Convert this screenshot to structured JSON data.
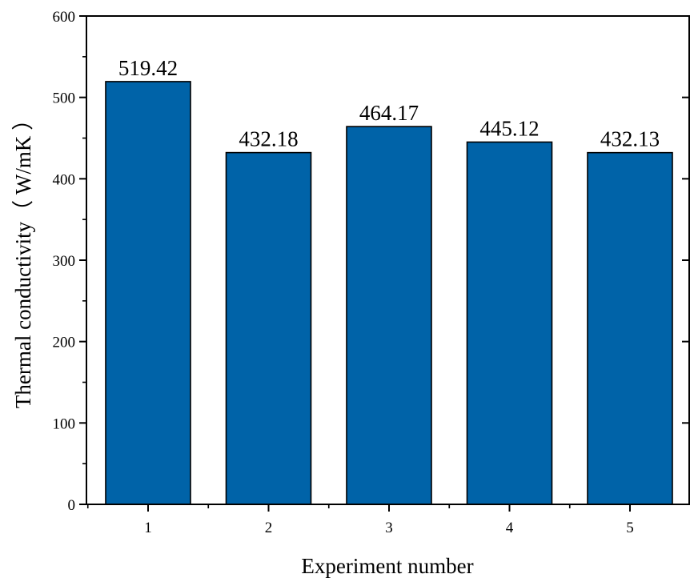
{
  "chart_data": {
    "type": "bar",
    "categories": [
      "1",
      "2",
      "3",
      "4",
      "5"
    ],
    "values": [
      519.42,
      432.18,
      464.17,
      445.12,
      432.13
    ],
    "data_labels": [
      "519.42",
      "432.18",
      "464.17",
      "445.12",
      "432.13"
    ],
    "xlabel": "Experiment number",
    "ylabel": "Thermal conductivity（ W/mK ）",
    "ylim": [
      0,
      600
    ],
    "yticks": [
      0,
      100,
      200,
      300,
      400,
      500,
      600
    ],
    "ytick_labels": [
      "0",
      "100",
      "200",
      "300",
      "400",
      "500",
      "600"
    ],
    "grid": false,
    "bar_color": "#0063a8",
    "bar_edge_color": "#000000"
  }
}
